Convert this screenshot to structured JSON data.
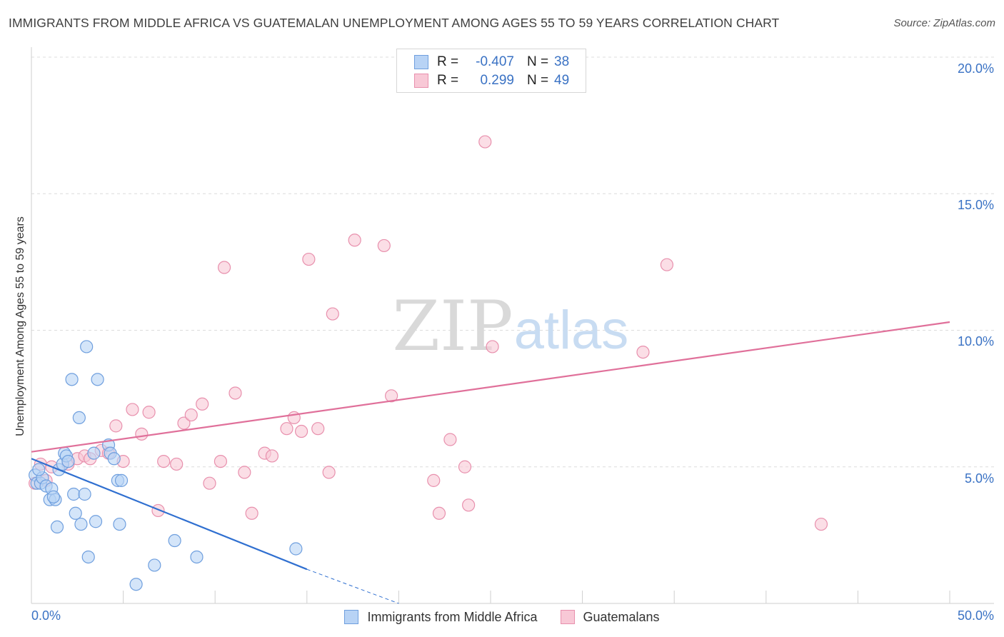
{
  "title": "IMMIGRANTS FROM MIDDLE AFRICA VS GUATEMALAN UNEMPLOYMENT AMONG AGES 55 TO 59 YEARS CORRELATION CHART",
  "source": "Source: ZipAtlas.com",
  "watermark": {
    "zip": "ZIP",
    "atlas": "atlas"
  },
  "legend": {
    "rows": [
      {
        "r_label": "R =",
        "r_value": "-0.407",
        "n_label": "N =",
        "n_value": "38"
      },
      {
        "r_label": "R =",
        "r_value": " 0.299",
        "n_label": "N =",
        "n_value": "49"
      }
    ]
  },
  "bottom_legend": {
    "series1": "Immigrants from Middle Africa",
    "series2": "Guatemalans"
  },
  "axis": {
    "x_min_label": "0.0%",
    "x_max_label": "50.0%",
    "y_ticks": [
      "5.0%",
      "10.0%",
      "15.0%",
      "20.0%"
    ]
  },
  "chart_data": {
    "type": "scatter",
    "title": "IMMIGRANTS FROM MIDDLE AFRICA VS GUATEMALAN UNEMPLOYMENT AMONG AGES 55 TO 59 YEARS CORRELATION CHART",
    "xlabel": "",
    "ylabel": "Unemployment Among Ages 55 to 59 years",
    "xlim": [
      0,
      50
    ],
    "ylim": [
      0,
      20.8
    ],
    "y_gridlines": [
      5,
      10,
      15,
      20
    ],
    "colors": {
      "blue_fill": "#b8d3f5",
      "blue_stroke": "#6f9fde",
      "blue_line": "#2f6fd0",
      "pink_fill": "#f8c8d6",
      "pink_stroke": "#e890ad",
      "pink_line": "#e0709a",
      "tick": "#3a72c4"
    },
    "series": [
      {
        "name": "Immigrants from Middle Africa",
        "r": -0.407,
        "n": 38,
        "points": [
          [
            0.2,
            4.7
          ],
          [
            0.3,
            4.4
          ],
          [
            0.5,
            4.4
          ],
          [
            0.6,
            4.6
          ],
          [
            0.8,
            4.3
          ],
          [
            1.0,
            3.8
          ],
          [
            1.1,
            4.2
          ],
          [
            1.3,
            3.8
          ],
          [
            1.4,
            2.8
          ],
          [
            1.5,
            4.9
          ],
          [
            1.7,
            5.1
          ],
          [
            1.8,
            5.5
          ],
          [
            1.9,
            5.4
          ],
          [
            2.0,
            5.2
          ],
          [
            2.2,
            8.2
          ],
          [
            2.3,
            4.0
          ],
          [
            2.4,
            3.3
          ],
          [
            2.6,
            6.8
          ],
          [
            2.7,
            2.9
          ],
          [
            2.9,
            4.0
          ],
          [
            3.0,
            9.4
          ],
          [
            3.1,
            1.7
          ],
          [
            3.4,
            5.5
          ],
          [
            3.5,
            3.0
          ],
          [
            3.6,
            8.2
          ],
          [
            4.2,
            5.8
          ],
          [
            4.3,
            5.5
          ],
          [
            4.5,
            5.3
          ],
          [
            4.7,
            4.5
          ],
          [
            4.8,
            2.9
          ],
          [
            4.9,
            4.5
          ],
          [
            5.7,
            0.7
          ],
          [
            6.7,
            1.4
          ],
          [
            7.8,
            2.3
          ],
          [
            9.0,
            1.7
          ],
          [
            14.4,
            2.0
          ],
          [
            0.4,
            4.9
          ],
          [
            1.2,
            3.9
          ]
        ],
        "trend": {
          "x": [
            0,
            15
          ],
          "y": [
            5.3,
            1.25
          ],
          "dashed_to": [
            20,
            0
          ]
        }
      },
      {
        "name": "Guatemalans",
        "r": 0.299,
        "n": 49,
        "points": [
          [
            0.2,
            4.4
          ],
          [
            0.5,
            5.1
          ],
          [
            0.8,
            4.5
          ],
          [
            1.1,
            5.0
          ],
          [
            2.0,
            5.1
          ],
          [
            2.5,
            5.3
          ],
          [
            2.9,
            5.4
          ],
          [
            3.2,
            5.3
          ],
          [
            3.8,
            5.6
          ],
          [
            4.2,
            5.5
          ],
          [
            4.6,
            6.5
          ],
          [
            5.0,
            5.2
          ],
          [
            5.5,
            7.1
          ],
          [
            6.0,
            6.2
          ],
          [
            6.4,
            7.0
          ],
          [
            6.9,
            3.4
          ],
          [
            7.2,
            5.2
          ],
          [
            7.9,
            5.1
          ],
          [
            8.3,
            6.6
          ],
          [
            8.7,
            6.9
          ],
          [
            9.3,
            7.3
          ],
          [
            9.7,
            4.4
          ],
          [
            10.3,
            5.2
          ],
          [
            10.5,
            12.3
          ],
          [
            11.1,
            7.7
          ],
          [
            11.6,
            4.8
          ],
          [
            12.0,
            3.3
          ],
          [
            12.7,
            5.5
          ],
          [
            13.1,
            5.4
          ],
          [
            13.9,
            6.4
          ],
          [
            14.3,
            6.8
          ],
          [
            14.7,
            6.3
          ],
          [
            15.1,
            12.6
          ],
          [
            15.6,
            6.4
          ],
          [
            16.2,
            4.8
          ],
          [
            16.4,
            10.6
          ],
          [
            17.6,
            13.3
          ],
          [
            19.2,
            13.1
          ],
          [
            19.6,
            7.6
          ],
          [
            21.9,
            4.5
          ],
          [
            22.2,
            3.3
          ],
          [
            22.8,
            6.0
          ],
          [
            23.6,
            5.0
          ],
          [
            23.8,
            3.6
          ],
          [
            24.7,
            16.9
          ],
          [
            25.1,
            9.4
          ],
          [
            33.3,
            9.2
          ],
          [
            34.6,
            12.4
          ],
          [
            43.0,
            2.9
          ]
        ],
        "trend": {
          "x": [
            0,
            50
          ],
          "y": [
            5.55,
            10.3
          ]
        }
      }
    ]
  }
}
